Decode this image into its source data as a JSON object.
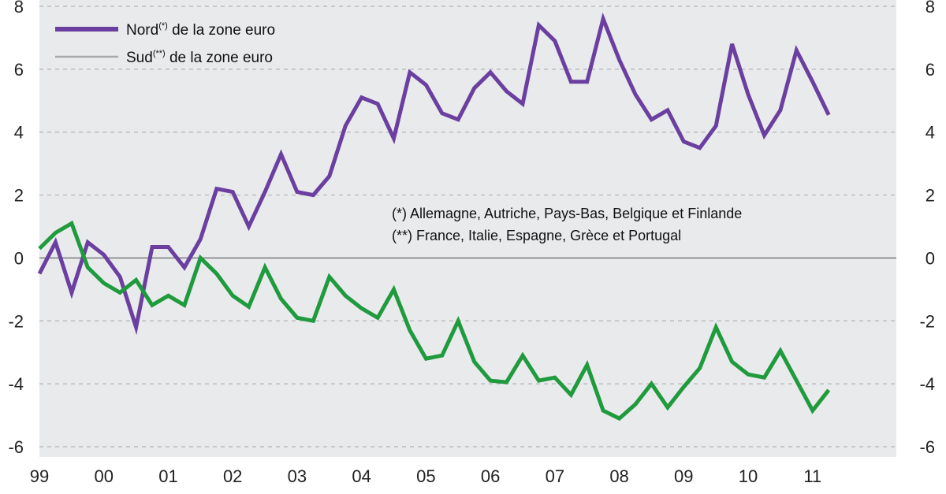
{
  "chart_data": {
    "type": "line",
    "legend": {
      "placement": "top-left",
      "entries": [
        {
          "label": "Nord",
          "sup": "(*)",
          "suffix": " de la zone euro"
        },
        {
          "label": "Sud",
          "sup": "(**)",
          "suffix": " de la zone euro"
        }
      ]
    },
    "notes": [
      "(*) Allemagne, Autriche, Pays-Bas, Belgique et Finlande",
      "(**) France, Italie, Espagne, Grèce et Portugal"
    ],
    "x_tick_labels": [
      "99",
      "00",
      "01",
      "02",
      "03",
      "04",
      "05",
      "06",
      "07",
      "08",
      "09",
      "10",
      "11"
    ],
    "y_tick_labels": [
      "8",
      "6",
      "4",
      "2",
      "0",
      "-2",
      "-4",
      "-6"
    ],
    "y_ticks": [
      8,
      6,
      4,
      2,
      0,
      -2,
      -4,
      -6
    ],
    "ylim": [
      -6,
      8
    ],
    "xlim": [
      1999,
      2012.3
    ],
    "grid": "horizontal-dashed",
    "series": [
      {
        "color": "#6b3fa0",
        "x": [
          1999.0,
          1999.25,
          1999.5,
          1999.75,
          2000.0,
          2000.25,
          2000.5,
          2000.75,
          2001.0,
          2001.25,
          2001.5,
          2001.75,
          2002.0,
          2002.25,
          2002.5,
          2002.75,
          2003.0,
          2003.25,
          2003.5,
          2003.75,
          2004.0,
          2004.25,
          2004.5,
          2004.75,
          2005.0,
          2005.25,
          2005.5,
          2005.75,
          2006.0,
          2006.25,
          2006.5,
          2006.75,
          2007.0,
          2007.25,
          2007.5,
          2007.75,
          2008.0,
          2008.25,
          2008.5,
          2008.75,
          2009.0,
          2009.25,
          2009.5,
          2009.75,
          2010.0,
          2010.25,
          2010.5,
          2010.75,
          2011.0,
          2011.25
        ],
        "values": [
          -0.5,
          0.5,
          -1.1,
          0.5,
          0.1,
          -0.6,
          -2.2,
          0.35,
          0.35,
          -0.3,
          0.6,
          2.2,
          2.1,
          1.0,
          2.1,
          3.3,
          2.1,
          2.0,
          2.6,
          4.2,
          5.1,
          4.9,
          3.8,
          5.9,
          5.5,
          4.6,
          4.4,
          5.4,
          5.9,
          5.3,
          4.9,
          7.4,
          6.9,
          5.6,
          5.6,
          7.6,
          6.3,
          5.2,
          4.4,
          4.7,
          3.7,
          3.5,
          4.2,
          6.8,
          5.2,
          3.9,
          4.7,
          6.6,
          5.6,
          4.55
        ]
      },
      {
        "color": "#1f9a3d",
        "x": [
          1999.0,
          1999.25,
          1999.5,
          1999.75,
          2000.0,
          2000.25,
          2000.5,
          2000.75,
          2001.0,
          2001.25,
          2001.5,
          2001.75,
          2002.0,
          2002.25,
          2002.5,
          2002.75,
          2003.0,
          2003.25,
          2003.5,
          2003.75,
          2004.0,
          2004.25,
          2004.5,
          2004.75,
          2005.0,
          2005.25,
          2005.5,
          2005.75,
          2006.0,
          2006.25,
          2006.5,
          2006.75,
          2007.0,
          2007.25,
          2007.5,
          2007.75,
          2008.0,
          2008.25,
          2008.5,
          2008.75,
          2009.0,
          2009.25,
          2009.5,
          2009.75,
          2010.0,
          2010.25,
          2010.5,
          2010.75,
          2011.0,
          2011.25
        ],
        "values": [
          0.3,
          0.8,
          1.1,
          -0.3,
          -0.8,
          -1.1,
          -0.7,
          -1.5,
          -1.2,
          -1.5,
          0.0,
          -0.5,
          -1.2,
          -1.55,
          -0.3,
          -1.3,
          -1.9,
          -2.0,
          -0.6,
          -1.2,
          -1.6,
          -1.9,
          -1.0,
          -2.3,
          -3.2,
          -3.1,
          -2.0,
          -3.3,
          -3.9,
          -3.95,
          -3.1,
          -3.9,
          -3.8,
          -4.35,
          -3.4,
          -4.85,
          -5.1,
          -4.65,
          -4.0,
          -4.75,
          -4.1,
          -3.5,
          -2.2,
          -3.3,
          -3.7,
          -3.8,
          -2.95,
          -3.9,
          -4.85,
          -4.2
        ]
      }
    ]
  }
}
